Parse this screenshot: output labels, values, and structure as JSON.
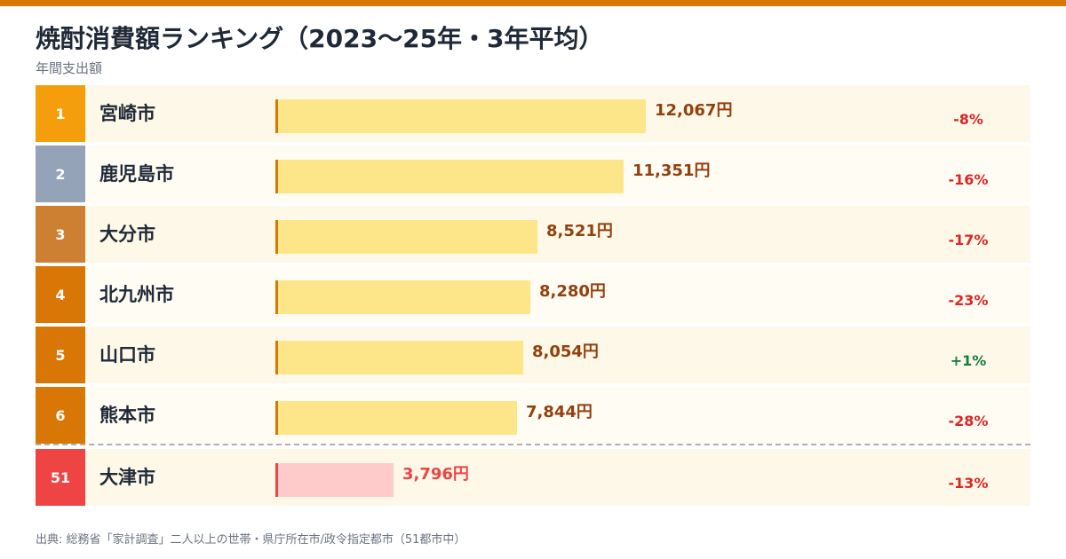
{
  "title": "焼酎消費額ランキング（2023〜25年・3年平均）",
  "subtitle": "年間支出額",
  "source": "出典: 総務省「家計調査」二人以上の世帯・県庁所在市/政令指定都市（51都市中）",
  "colors": {
    "accent": "#d97706",
    "rank_gold": "#f59e0b",
    "rank_silver": "#94a3b8",
    "rank_bronze": "#cd7f32",
    "rank_default": "#d97706",
    "rank_highlight": "#ef4444",
    "bar": "#fde68a",
    "bar_highlight": "#fecaca",
    "value_text": "#92400e",
    "value_highlight": "#ef4444",
    "negative": "#dc2626",
    "positive": "#15803d"
  },
  "chart_data": {
    "type": "bar",
    "orientation": "horizontal",
    "title": "焼酎消費額ランキング（2023〜25年・3年平均）",
    "subtitle": "年間支出額",
    "unit": "円",
    "rows": [
      {
        "rank": "1",
        "city": "宮崎市",
        "value": 12067,
        "value_label": "12,067円",
        "change": "-8%"
      },
      {
        "rank": "2",
        "city": "鹿児島市",
        "value": 11351,
        "value_label": "11,351円",
        "change": "-16%"
      },
      {
        "rank": "3",
        "city": "大分市",
        "value": 8521,
        "value_label": "8,521円",
        "change": "-17%"
      },
      {
        "rank": "4",
        "city": "北九州市",
        "value": 8280,
        "value_label": "8,280円",
        "change": "-23%"
      },
      {
        "rank": "5",
        "city": "山口市",
        "value": 8054,
        "value_label": "8,054円",
        "change": "+1%"
      },
      {
        "rank": "6",
        "city": "熊本市",
        "value": 7844,
        "value_label": "7,844円",
        "change": "-28%"
      },
      {
        "rank": "51",
        "city": "大津市",
        "value": 3796,
        "value_label": "3,796円",
        "change": "-13%",
        "highlight": true
      }
    ]
  }
}
